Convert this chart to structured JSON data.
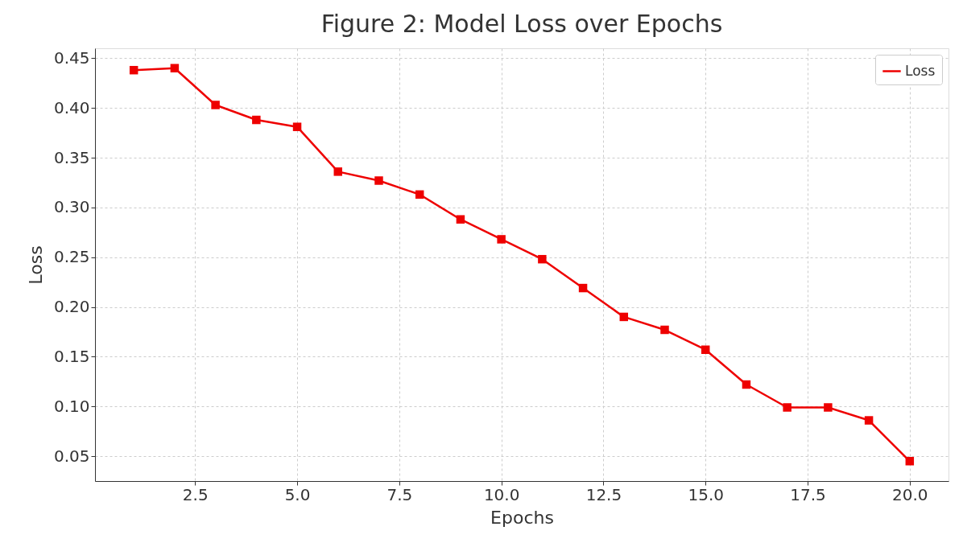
{
  "chart_data": {
    "type": "line",
    "title": "Figure 2: Model Loss over Epochs",
    "xlabel": "Epochs",
    "ylabel": "Loss",
    "x": [
      1,
      2,
      3,
      4,
      5,
      6,
      7,
      8,
      9,
      10,
      11,
      12,
      13,
      14,
      15,
      16,
      17,
      18,
      19,
      20
    ],
    "series": [
      {
        "name": "Loss",
        "color": "#ee0000",
        "values": [
          0.438,
          0.44,
          0.403,
          0.388,
          0.381,
          0.336,
          0.327,
          0.313,
          0.288,
          0.268,
          0.248,
          0.219,
          0.19,
          0.177,
          0.157,
          0.122,
          0.099,
          0.099,
          0.086,
          0.045
        ]
      }
    ],
    "xlim": [
      0.05,
      20.95
    ],
    "ylim": [
      0.025,
      0.46
    ],
    "xticks": [
      2.5,
      {
        "value": 5,
        "label": "5.0"
      },
      7.5,
      {
        "value": 10,
        "label": "10.0"
      },
      12.5,
      {
        "value": 15,
        "label": "15.0"
      },
      17.5,
      {
        "value": 20,
        "label": "20.0"
      }
    ],
    "yticks": [
      0.05,
      {
        "value": 0.1,
        "label": "0.10"
      },
      0.15,
      {
        "value": 0.2,
        "label": "0.20"
      },
      0.25,
      {
        "value": 0.3,
        "label": "0.30"
      },
      0.35,
      {
        "value": 0.4,
        "label": "0.40"
      },
      0.45
    ],
    "grid": true,
    "legend": "top right",
    "marker": "square",
    "line_style": "solid"
  }
}
